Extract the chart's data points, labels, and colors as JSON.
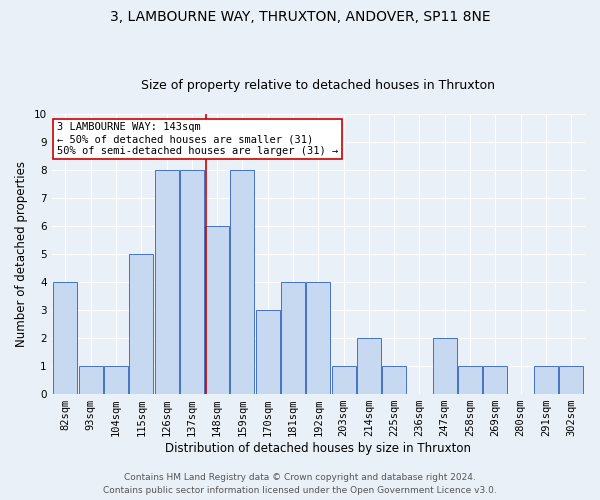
{
  "title1": "3, LAMBOURNE WAY, THRUXTON, ANDOVER, SP11 8NE",
  "title2": "Size of property relative to detached houses in Thruxton",
  "xlabel": "Distribution of detached houses by size in Thruxton",
  "ylabel": "Number of detached properties",
  "categories": [
    "82sqm",
    "93sqm",
    "104sqm",
    "115sqm",
    "126sqm",
    "137sqm",
    "148sqm",
    "159sqm",
    "170sqm",
    "181sqm",
    "192sqm",
    "203sqm",
    "214sqm",
    "225sqm",
    "236sqm",
    "247sqm",
    "258sqm",
    "269sqm",
    "280sqm",
    "291sqm",
    "302sqm"
  ],
  "values": [
    4,
    1,
    1,
    5,
    8,
    8,
    6,
    8,
    3,
    4,
    4,
    1,
    2,
    1,
    0,
    2,
    1,
    1,
    0,
    1,
    1
  ],
  "bar_color": "#c6d9f0",
  "bar_edge_color": "#4472c4",
  "vline_color": "#cc0000",
  "annotation_text": "3 LAMBOURNE WAY: 143sqm\n← 50% of detached houses are smaller (31)\n50% of semi-detached houses are larger (31) →",
  "annotation_box_color": "#ffffff",
  "annotation_box_edge_color": "#cc0000",
  "ylim": [
    0,
    10
  ],
  "yticks": [
    0,
    1,
    2,
    3,
    4,
    5,
    6,
    7,
    8,
    9,
    10
  ],
  "footnote1": "Contains HM Land Registry data © Crown copyright and database right 2024.",
  "footnote2": "Contains public sector information licensed under the Open Government Licence v3.0.",
  "background_color": "#eaf0f8",
  "grid_color": "#ffffff",
  "title1_fontsize": 10,
  "title2_fontsize": 9,
  "xlabel_fontsize": 8.5,
  "ylabel_fontsize": 8.5,
  "tick_fontsize": 7.5,
  "annotation_fontsize": 7.5,
  "footnote_fontsize": 6.5
}
